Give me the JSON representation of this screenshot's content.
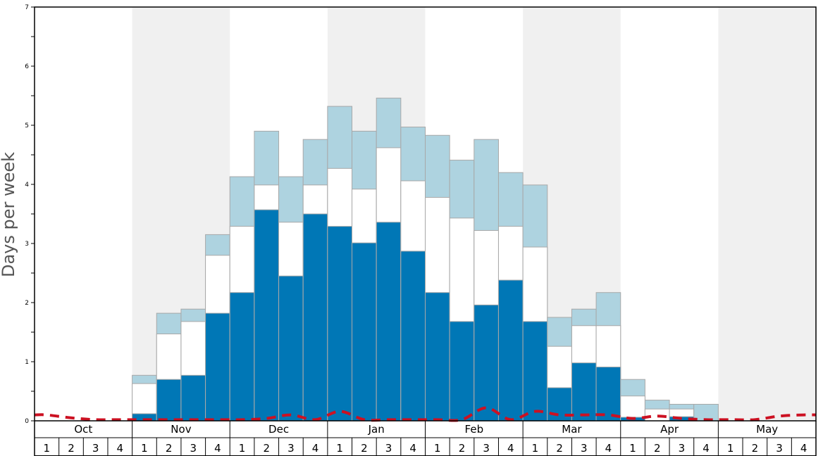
{
  "chart_data": {
    "type": "bar",
    "ylabel": "Days per week",
    "ylim": [
      0,
      7
    ],
    "y_ticks": [
      "0",
      "1",
      "2",
      "3",
      "4",
      "5",
      "6",
      "7"
    ],
    "months": [
      "Oct",
      "Nov",
      "Dec",
      "Jan",
      "Feb",
      "Mar",
      "Apr",
      "May"
    ],
    "week_labels": [
      "1",
      "2",
      "3",
      "4"
    ],
    "shaded_months": [
      "Nov",
      "Jan",
      "Mar",
      "May"
    ],
    "colors": {
      "dark": "#0077b6",
      "middle": "#ffffff",
      "light": "#aed3e0",
      "dashed_line": "#cc1122",
      "shade": "#f0f0f0",
      "bar_stroke": "#a8a8a8"
    },
    "series": [
      {
        "values": [
          0,
          0,
          0,
          0,
          0.12,
          0.7,
          0.77,
          1.82,
          2.17,
          3.57,
          2.45,
          3.5,
          3.29,
          3.01,
          3.36,
          2.87,
          2.17,
          1.68,
          1.96,
          2.38,
          1.68,
          0.56,
          0.98,
          0.91,
          0.06,
          0,
          0.07,
          0,
          0,
          0,
          0,
          0
        ]
      },
      {
        "values": [
          0,
          0,
          0,
          0,
          0.63,
          1.47,
          1.68,
          2.8,
          3.29,
          3.99,
          3.36,
          3.99,
          4.27,
          3.92,
          4.62,
          4.06,
          3.78,
          3.43,
          3.22,
          3.29,
          2.94,
          1.26,
          1.61,
          1.61,
          0.42,
          0.2,
          0.2,
          0,
          0,
          0,
          0,
          0
        ]
      },
      {
        "values": [
          0,
          0,
          0,
          0,
          0.77,
          1.82,
          1.89,
          3.15,
          4.13,
          4.9,
          4.13,
          4.76,
          5.32,
          4.9,
          5.46,
          4.97,
          4.83,
          4.41,
          4.76,
          4.2,
          3.99,
          1.75,
          1.89,
          2.17,
          0.7,
          0.35,
          0.28,
          0.28,
          0,
          0,
          0,
          0
        ]
      },
      {
        "values": [
          0.1,
          0.05,
          0.02,
          0.02,
          0.02,
          0.02,
          0.02,
          0.02,
          0.02,
          0.04,
          0.1,
          0.02,
          0.16,
          0.02,
          0.02,
          0.02,
          0.02,
          0.02,
          0.22,
          0.02,
          0.16,
          0.1,
          0.1,
          0.1,
          0.04,
          0.08,
          0.04,
          0.02,
          0.02,
          0.02,
          0.08,
          0.1
        ]
      }
    ]
  }
}
